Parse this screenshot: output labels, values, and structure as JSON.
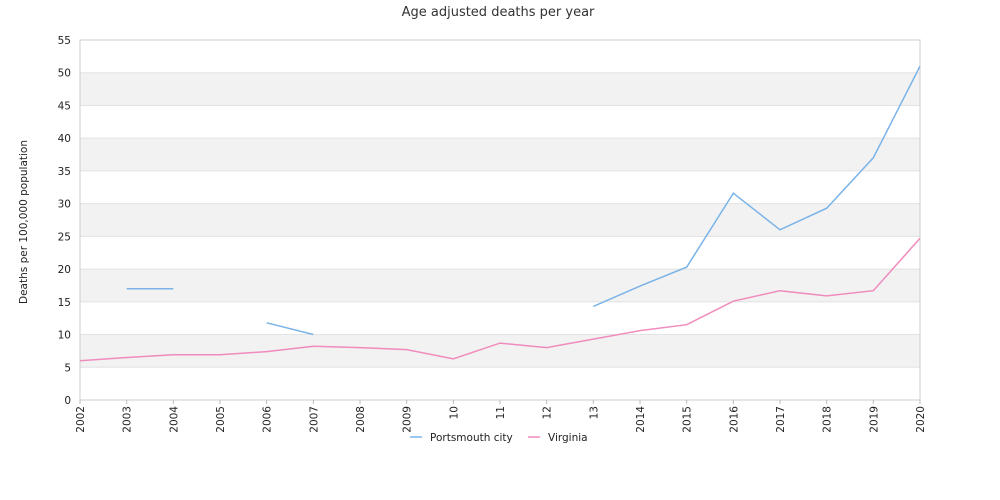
{
  "chart_data": {
    "type": "line",
    "title": "Age adjusted deaths per year",
    "xlabel": "",
    "ylabel": "Deaths per 100,000 population",
    "categories": [
      "2002",
      "2003",
      "2004",
      "2005",
      "2006",
      "2007",
      "2008",
      "2009",
      "2010",
      "2011",
      "2012",
      "2013",
      "2014",
      "2015",
      "2016",
      "2017",
      "2018",
      "2019",
      "2020"
    ],
    "tick_labels": [
      "2002",
      "2003",
      "2004",
      "2005",
      "2006",
      "2007",
      "2008",
      "2009",
      "10",
      "11",
      "12",
      "13",
      "2014",
      "2015",
      "2016",
      "2017",
      "2018",
      "2019",
      "2020"
    ],
    "ylim": [
      0,
      55
    ],
    "yticks": [
      0,
      5,
      10,
      15,
      20,
      25,
      30,
      35,
      40,
      45,
      50,
      55
    ],
    "grid": "horizontal alternating bands",
    "legend_position": "bottom",
    "series": [
      {
        "name": "Portsmouth city",
        "color": "#7ab3e8",
        "values": [
          null,
          17.0,
          17.0,
          null,
          11.8,
          10.0,
          null,
          null,
          null,
          null,
          null,
          14.3,
          17.4,
          20.3,
          31.6,
          26.0,
          29.3,
          37.0,
          51.0
        ]
      },
      {
        "name": "Virginia",
        "color": "#f08bbd",
        "values": [
          6.0,
          6.5,
          6.9,
          6.9,
          7.4,
          8.2,
          8.0,
          7.7,
          6.3,
          8.7,
          8.0,
          9.3,
          10.6,
          11.5,
          15.1,
          16.7,
          15.9,
          16.7,
          24.7
        ]
      }
    ]
  }
}
